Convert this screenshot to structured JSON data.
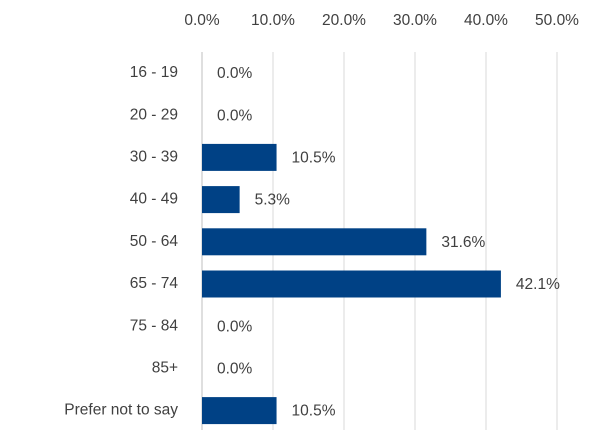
{
  "chart_data": {
    "type": "bar",
    "orientation": "horizontal",
    "title": "",
    "xlabel": "",
    "ylabel": "",
    "categories": [
      "16 - 19",
      "20 - 29",
      "30 - 39",
      "40 - 49",
      "50 - 64",
      "65 - 74",
      "75 - 84",
      "85+",
      "Prefer not to say"
    ],
    "values": [
      0.0,
      0.0,
      10.5,
      5.3,
      31.6,
      42.1,
      0.0,
      0.0,
      10.5
    ],
    "data_labels": [
      "0.0%",
      "0.0%",
      "10.5%",
      "5.3%",
      "31.6%",
      "42.1%",
      "0.0%",
      "0.0%",
      "10.5%"
    ],
    "xlim": [
      0,
      50
    ],
    "x_ticks": [
      0,
      10,
      20,
      30,
      40,
      50
    ],
    "x_tick_labels": [
      "0.0%",
      "10.0%",
      "20.0%",
      "30.0%",
      "40.0%",
      "50.0%"
    ],
    "x_axis_position": "top",
    "grid": true,
    "legend": "none",
    "bar_color": "#004185"
  }
}
